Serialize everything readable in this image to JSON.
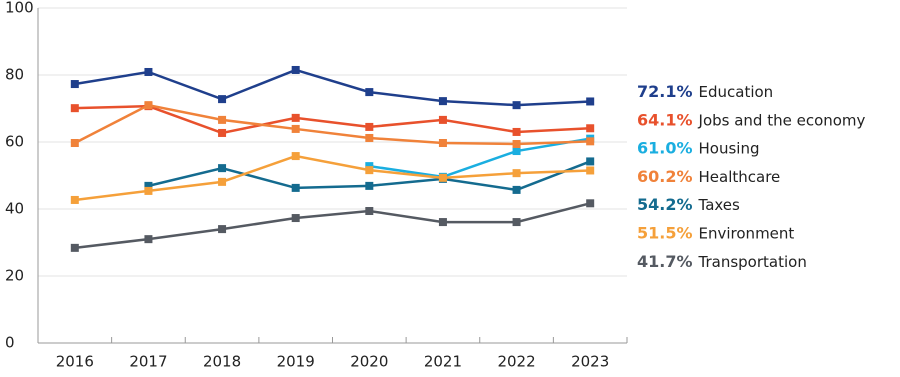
{
  "chart_data": {
    "type": "line",
    "categories": [
      "2016",
      "2017",
      "2018",
      "2019",
      "2020",
      "2021",
      "2022",
      "2023"
    ],
    "ylim": [
      0,
      100
    ],
    "yticks": [
      0,
      20,
      40,
      60,
      80,
      100
    ],
    "grid": true,
    "series": [
      {
        "name": "Education",
        "color": "#1f3f8c",
        "values": [
          77.3,
          80.9,
          72.8,
          81.5,
          74.9,
          72.2,
          71.0,
          72.1
        ],
        "value_labels": [
          null,
          null,
          null,
          null,
          null,
          null,
          null,
          "72.1%"
        ]
      },
      {
        "name": "Jobs and the economy",
        "color": "#e8512c",
        "values": [
          70.1,
          70.7,
          62.7,
          67.2,
          64.5,
          66.6,
          63.0,
          64.1
        ],
        "value_labels": [
          null,
          null,
          null,
          null,
          null,
          null,
          null,
          "64.1%"
        ]
      },
      {
        "name": "Housing",
        "color": "#1aaee0",
        "values": [
          null,
          null,
          null,
          null,
          52.8,
          49.6,
          57.3,
          61.0
        ],
        "value_labels": [
          null,
          null,
          null,
          null,
          null,
          null,
          null,
          "61.0%"
        ]
      },
      {
        "name": "Healthcare",
        "color": "#f0823a",
        "values": [
          59.7,
          71.0,
          66.6,
          63.9,
          61.2,
          59.7,
          59.4,
          60.2
        ],
        "value_labels": [
          null,
          null,
          null,
          null,
          null,
          null,
          null,
          "60.2%"
        ]
      },
      {
        "name": "Taxes",
        "color": "#146b8f",
        "values": [
          null,
          46.9,
          52.2,
          46.3,
          46.9,
          49.0,
          45.7,
          54.2
        ],
        "value_labels": [
          null,
          null,
          null,
          null,
          null,
          null,
          null,
          "54.2%"
        ]
      },
      {
        "name": "Environment",
        "color": "#f5a03a",
        "values": [
          42.7,
          45.4,
          48.1,
          55.8,
          51.6,
          49.3,
          50.7,
          51.5
        ],
        "value_labels": [
          null,
          null,
          null,
          null,
          null,
          null,
          null,
          "51.5%"
        ]
      },
      {
        "name": "Transportation",
        "color": "#555a62",
        "values": [
          28.4,
          31.0,
          34.0,
          37.3,
          39.4,
          36.1,
          36.1,
          41.7
        ],
        "value_labels": [
          null,
          null,
          null,
          null,
          null,
          null,
          null,
          "41.7%"
        ]
      }
    ]
  }
}
